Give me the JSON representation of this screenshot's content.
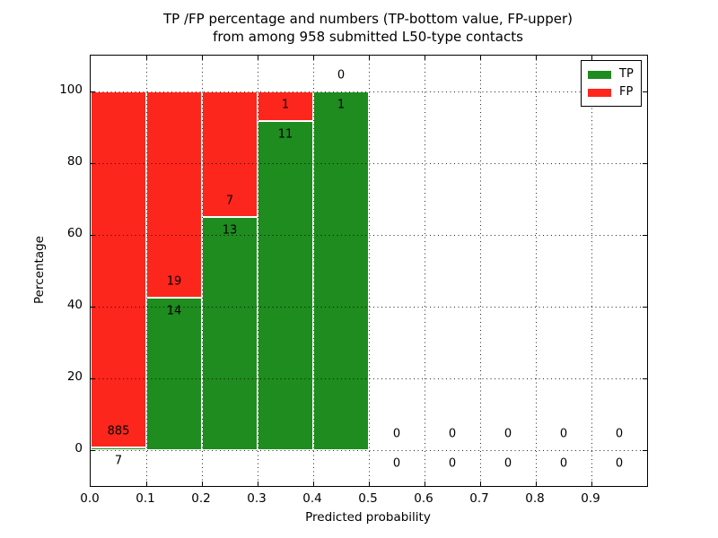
{
  "figure": {
    "title_line1": "TP /FP percentage and numbers (TP-bottom value, FP-upper)",
    "title_line2": "from among 958 submitted L50-type contacts"
  },
  "chart_data": {
    "type": "bar",
    "stacked": true,
    "title": "TP /FP percentage and numbers (TP-bottom value, FP-upper)\nfrom among 958 submitted L50-type contacts",
    "xlabel": "Predicted probability",
    "ylabel": "Percentage",
    "xlim": [
      0.0,
      1.0
    ],
    "ylim": [
      -10,
      110
    ],
    "xticks": [
      {
        "value": 0.0,
        "label": "0.0"
      },
      {
        "value": 0.1,
        "label": "0.1"
      },
      {
        "value": 0.2,
        "label": "0.2"
      },
      {
        "value": 0.3,
        "label": "0.3"
      },
      {
        "value": 0.4,
        "label": "0.4"
      },
      {
        "value": 0.5,
        "label": "0.5"
      },
      {
        "value": 0.6,
        "label": "0.6"
      },
      {
        "value": 0.7,
        "label": "0.7"
      },
      {
        "value": 0.8,
        "label": "0.8"
      },
      {
        "value": 0.9,
        "label": "0.9"
      }
    ],
    "yticks": [
      {
        "value": 0,
        "label": "0"
      },
      {
        "value": 20,
        "label": "20"
      },
      {
        "value": 40,
        "label": "40"
      },
      {
        "value": 60,
        "label": "60"
      },
      {
        "value": 80,
        "label": "80"
      },
      {
        "value": 100,
        "label": "100"
      }
    ],
    "grid": true,
    "legend": {
      "position": "upper right",
      "entries": [
        {
          "label": "TP",
          "color": "#1e8c1e"
        },
        {
          "label": "FP",
          "color": "#fd261c"
        }
      ]
    },
    "series_note": "stacked percentage bars; TP count labeled below segment boundary, FP count above",
    "bins": [
      {
        "x0": 0.0,
        "x1": 0.1,
        "tp": 7,
        "fp": 885
      },
      {
        "x0": 0.1,
        "x1": 0.2,
        "tp": 14,
        "fp": 19
      },
      {
        "x0": 0.2,
        "x1": 0.3,
        "tp": 13,
        "fp": 7
      },
      {
        "x0": 0.3,
        "x1": 0.4,
        "tp": 11,
        "fp": 1
      },
      {
        "x0": 0.4,
        "x1": 0.5,
        "tp": 1,
        "fp": 0
      },
      {
        "x0": 0.5,
        "x1": 0.6,
        "tp": 0,
        "fp": 0
      },
      {
        "x0": 0.6,
        "x1": 0.7,
        "tp": 0,
        "fp": 0
      },
      {
        "x0": 0.7,
        "x1": 0.8,
        "tp": 0,
        "fp": 0
      },
      {
        "x0": 0.8,
        "x1": 0.9,
        "tp": 0,
        "fp": 0
      },
      {
        "x0": 0.9,
        "x1": 1.0,
        "tp": 0,
        "fp": 0
      }
    ],
    "colors": {
      "tp": "#1e8c1e",
      "fp": "#fd261c",
      "grid": "#000000",
      "bar_edge": "#ffffff"
    }
  }
}
